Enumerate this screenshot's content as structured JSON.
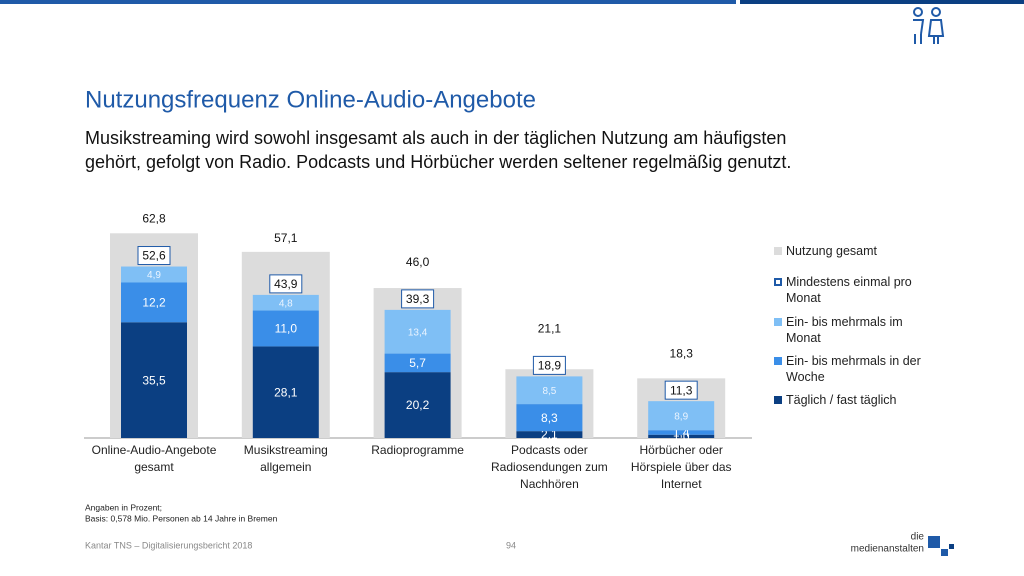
{
  "slide": {
    "title": "Nutzungsfrequenz Online-Audio-Angebote",
    "subtitle": [
      "Musikstreaming wird sowohl insgesamt als auch in der täglichen Nutzung am häufigsten",
      "gehört, gefolgt von Radio. Podcasts und Hörbücher werden seltener regelmäßig genutzt."
    ],
    "notes": [
      "Angaben in Prozent;",
      "Basis: 0,578 Mio. Personen ab 14 Jahre in Bremen"
    ],
    "footer": "Kantar TNS – Digitalisierungsbericht 2018",
    "page": "94",
    "logo": [
      "die",
      "medienanstalten"
    ]
  },
  "chart_data": {
    "type": "bar",
    "categories": [
      "Online-Audio-Angebote gesamt",
      "Musikstreaming allgemein",
      "Radioprogramme",
      "Podcasts oder Radiosendungen zum Nachhören",
      "Hörbücher oder Hörspiele über das Internet"
    ],
    "series": [
      {
        "name": "Nutzung gesamt",
        "color": "#dcdcdc",
        "values": [
          62.8,
          57.1,
          46.0,
          21.1,
          18.3
        ],
        "value_labels": [
          "62,8",
          "57,1",
          "46,0",
          "21,1",
          "18,3"
        ]
      },
      {
        "name": "Mindestens einmal pro Monat",
        "color": "#1f5aa8",
        "values": [
          52.6,
          43.9,
          39.3,
          18.9,
          11.3
        ],
        "value_labels": [
          "52,6",
          "43,9",
          "39,3",
          "18,9",
          "11,3"
        ]
      },
      {
        "name": "Ein- bis mehrmals im Monat",
        "color": "#7fbff5",
        "values": [
          4.9,
          4.8,
          13.4,
          8.5,
          8.9
        ],
        "value_labels": [
          "4,9",
          "4,8",
          "13,4",
          "8,5",
          "8,9"
        ]
      },
      {
        "name": "Ein- bis mehrmals in der Woche",
        "color": "#3a8ee8",
        "values": [
          12.2,
          11.0,
          5.7,
          8.3,
          1.4
        ],
        "value_labels": [
          "12,2",
          "11,0",
          "5,7",
          "8,3",
          "1,4"
        ]
      },
      {
        "name": "Täglich / fast täglich",
        "color": "#0b3f82",
        "values": [
          35.5,
          28.1,
          20.2,
          2.1,
          1.0
        ],
        "value_labels": [
          "35,5",
          "28,1",
          "20,2",
          "2,1",
          "1,0"
        ]
      }
    ]
  }
}
